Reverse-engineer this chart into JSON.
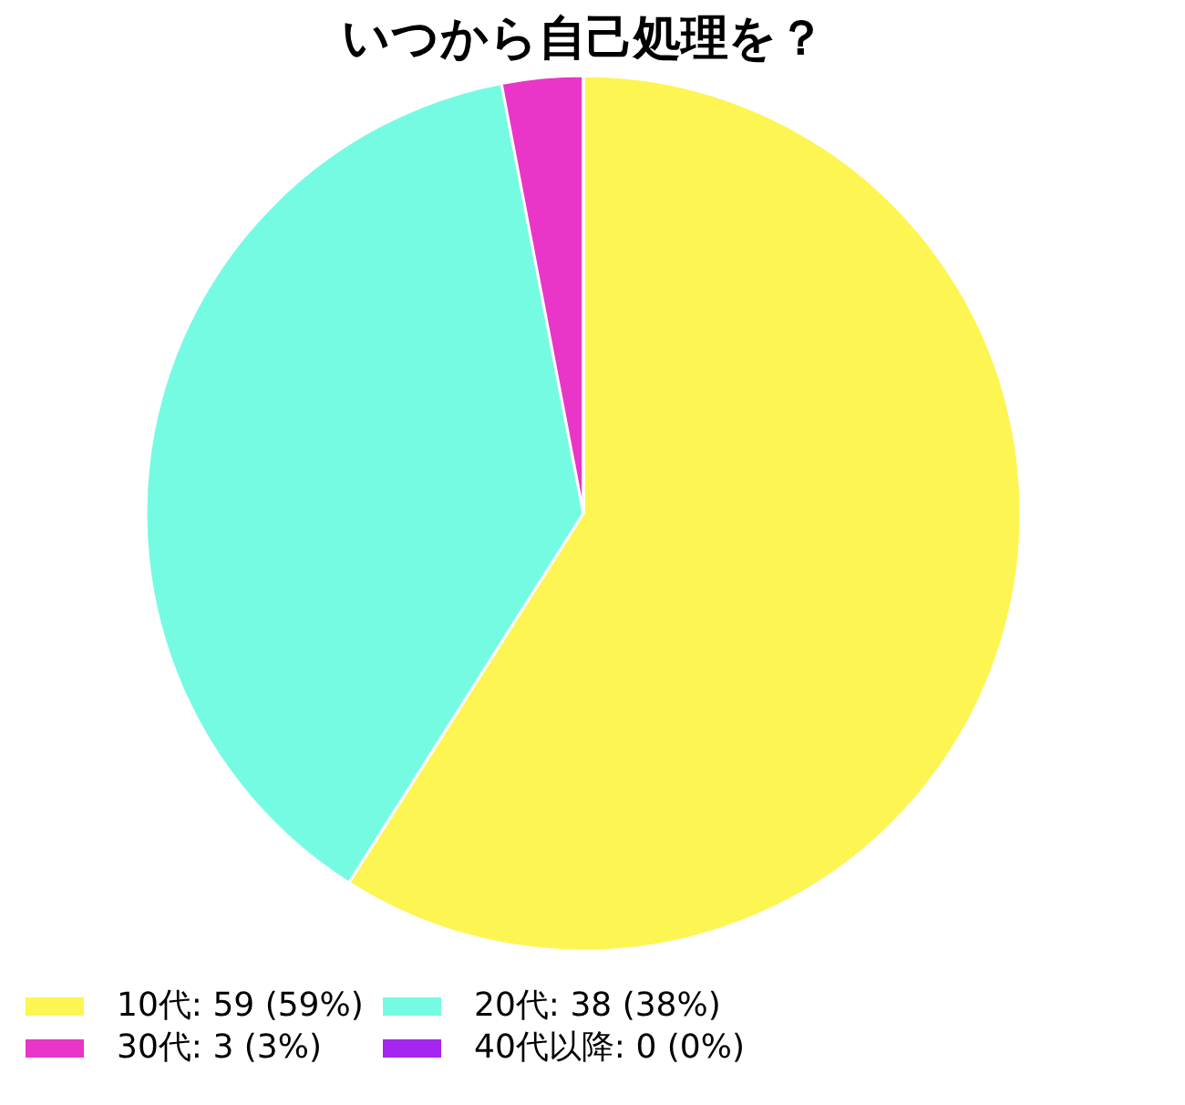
{
  "chart_data": {
    "type": "pie",
    "title": "いつから自己処理を？",
    "categories": [
      "10代",
      "20代",
      "30代",
      "40代以降"
    ],
    "values": [
      59,
      38,
      3,
      0
    ],
    "value_labels": [
      "59 (59%)",
      "38 (38%)",
      "3 (3%)",
      "0 (0%)"
    ],
    "colors": [
      "#fdf552",
      "#76fbe3",
      "#e935c8",
      "#a526f0"
    ],
    "legend": "bottom"
  }
}
